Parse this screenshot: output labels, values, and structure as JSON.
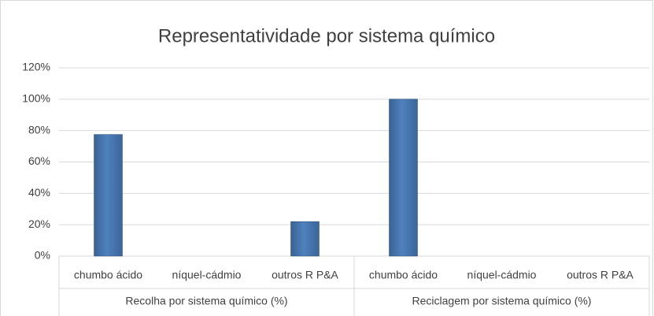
{
  "chart_data": {
    "type": "bar",
    "title": "Representatividade por sistema químico",
    "categories": [
      "chumbo ácido",
      "níquel-cádmio",
      "outros R P&A",
      "chumbo ácido",
      "níquel-cádmio",
      "outros R P&A"
    ],
    "groups": [
      "Recolha por sistema químico (%)",
      "Reciclagem por sistema químico (%)"
    ],
    "values": [
      77.5,
      0,
      22,
      100,
      0,
      0
    ],
    "color": "#4f81bd",
    "ylim": [
      0,
      120
    ],
    "yticks": [
      {
        "value": 0,
        "label": "0%"
      },
      {
        "value": 20,
        "label": "20%"
      },
      {
        "value": 40,
        "label": "40%"
      },
      {
        "value": 60,
        "label": "60%"
      },
      {
        "value": 80,
        "label": "80%"
      },
      {
        "value": 100,
        "label": "100%"
      },
      {
        "value": 120,
        "label": "120%"
      }
    ],
    "grid": true
  }
}
